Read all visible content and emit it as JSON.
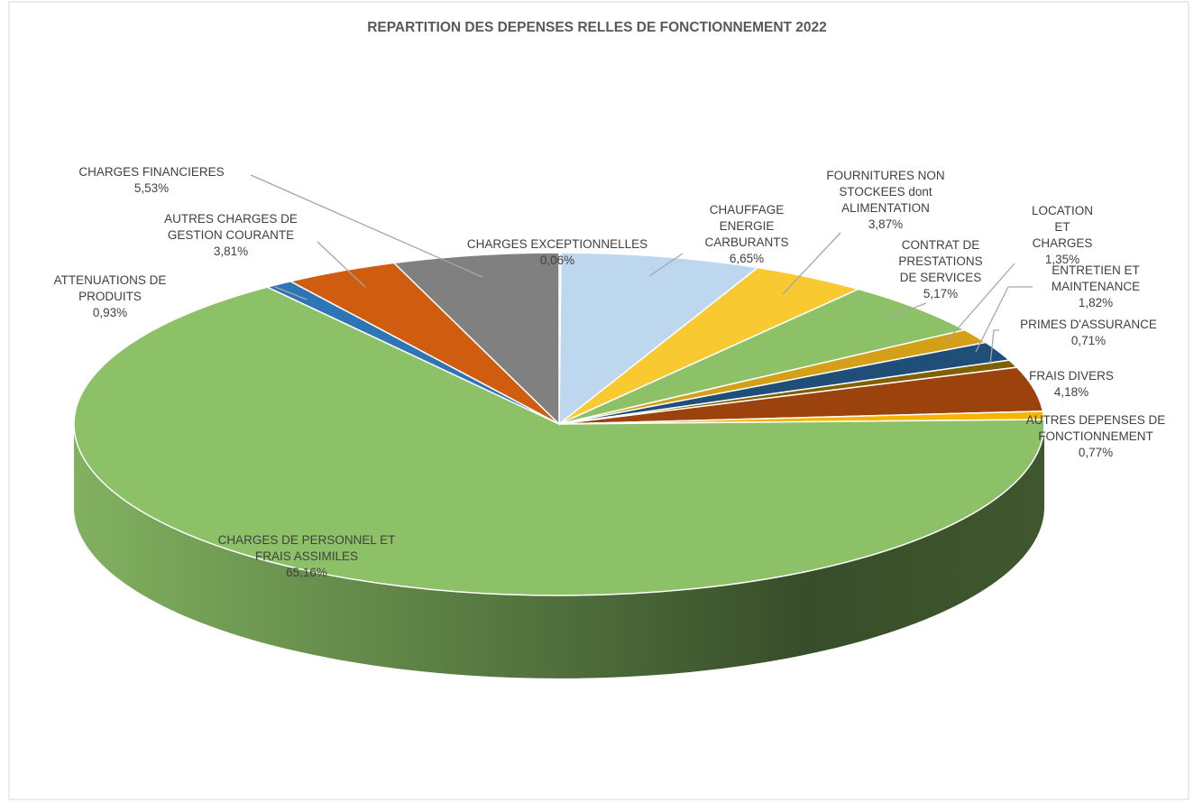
{
  "chart_data": {
    "type": "pie3d",
    "title": "REPARTITION DES DEPENSES RELLES DE FONCTIONNEMENT 2022",
    "categories": [
      "CHARGES EXCEPTIONNELLES",
      "CHAUFFAGE ENERGIE CARBURANTS",
      "FOURNITURES NON STOCKEES dont ALIMENTATION",
      "CONTRAT DE PRESTATIONS DE SERVICES",
      "LOCATION ET CHARGES",
      "ENTRETIEN ET MAINTENANCE",
      "PRIMES D'ASSURANCE",
      "FRAIS DIVERS",
      "AUTRES DEPENSES DE FONCTIONNEMENT",
      "CHARGES DE PERSONNEL ET FRAIS ASSIMILES",
      "ATTENUATIONS DE PRODUITS",
      "AUTRES CHARGES DE GESTION COURANTE",
      "CHARGES FINANCIERES"
    ],
    "values": [
      0.06,
      6.65,
      3.87,
      5.17,
      1.35,
      1.82,
      0.71,
      4.18,
      0.77,
      65.16,
      0.93,
      3.81,
      5.53
    ],
    "value_labels": [
      "0,06%",
      "6,65%",
      "3,87%",
      "5,17%",
      "1,35%",
      "1,82%",
      "0,71%",
      "4,18%",
      "0,77%",
      "65,16%",
      "0,93%",
      "3,81%",
      "5,53%"
    ],
    "colors": [
      "#a5a5a5",
      "#bdd7ee",
      "#f9c932",
      "#8cc168",
      "#d4a017",
      "#1f4e79",
      "#806000",
      "#9c420c",
      "#f4b400",
      "#8cc168",
      "#2e75b6",
      "#d05c10",
      "#808080"
    ]
  }
}
